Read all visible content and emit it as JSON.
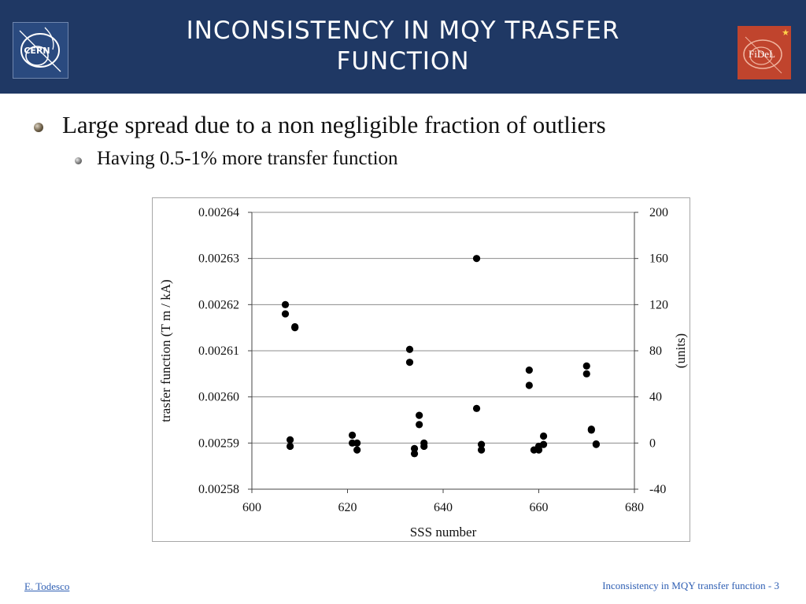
{
  "header": {
    "title_line1": "Inconsistency in MQY trasfer",
    "title_line2": "function",
    "logo_left_text": "CERN",
    "logo_right_text": "FiDeL"
  },
  "bullets": [
    {
      "level": 1,
      "text": "Large spread due to a non negligible fraction of outliers"
    },
    {
      "level": 2,
      "text": "Having 0.5-1% more transfer function"
    }
  ],
  "chart_data": {
    "type": "scatter",
    "xlabel": "SSS number",
    "ylabel": "trasfer function (T m / kA)",
    "y2label": "(units)",
    "xlim": [
      600,
      680
    ],
    "ylim": [
      0.00258,
      0.00264
    ],
    "y2lim": [
      -40,
      200
    ],
    "xticks": [
      "600",
      "620",
      "640",
      "660",
      "680"
    ],
    "yticks": [
      "0.00258",
      "0.00259",
      "0.00260",
      "0.00261",
      "0.00262",
      "0.00263",
      "0.00264"
    ],
    "y2ticks": [
      "-40",
      "0",
      "40",
      "80",
      "120",
      "160",
      "200"
    ],
    "grid": "horizontal",
    "marker_color": "#000000",
    "points": [
      [
        607,
        0.00262
      ],
      [
        607,
        0.002618
      ],
      [
        608,
        0.0025907
      ],
      [
        608,
        0.0025893
      ],
      [
        609,
        0.0026152
      ],
      [
        609,
        0.002615
      ],
      [
        621,
        0.0025917
      ],
      [
        621,
        0.00259
      ],
      [
        622,
        0.00259
      ],
      [
        622,
        0.0025885
      ],
      [
        633,
        0.0026103
      ],
      [
        633,
        0.0026075
      ],
      [
        634,
        0.0025888
      ],
      [
        634,
        0.0025877
      ],
      [
        635,
        0.002596
      ],
      [
        635,
        0.002594
      ],
      [
        636,
        0.00259
      ],
      [
        636,
        0.0025893
      ],
      [
        647,
        0.00263
      ],
      [
        647,
        0.0025975
      ],
      [
        648,
        0.0025897
      ],
      [
        648,
        0.0025885
      ],
      [
        658,
        0.0026058
      ],
      [
        658,
        0.0026025
      ],
      [
        659,
        0.0025885
      ],
      [
        660,
        0.0025893
      ],
      [
        660,
        0.0025885
      ],
      [
        661,
        0.0025915
      ],
      [
        661,
        0.0025897
      ],
      [
        670,
        0.0026067
      ],
      [
        670,
        0.002605
      ],
      [
        671,
        0.002593
      ],
      [
        671,
        0.0025928
      ],
      [
        672,
        0.0025898
      ],
      [
        672,
        0.0025897
      ]
    ]
  },
  "footer": {
    "author": "E. Todesco",
    "slide_label": "Inconsistency in MQY transfer function - 3"
  }
}
